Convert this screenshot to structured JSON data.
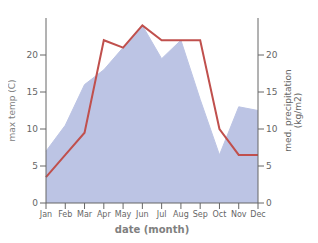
{
  "chart_data": {
    "type": "line",
    "categories": [
      "Jan",
      "Feb",
      "Mar",
      "Apr",
      "May",
      "Jun",
      "Jul",
      "Aug",
      "Sep",
      "Oct",
      "Nov",
      "Dec"
    ],
    "series": [
      {
        "type": "area",
        "axis": "y2",
        "color": "#bcc4e4",
        "values": [
          7.0,
          10.5,
          16.0,
          18.0,
          21.0,
          24.0,
          19.5,
          22.0,
          14.0,
          6.5,
          13.0,
          12.5
        ]
      },
      {
        "type": "line",
        "color": "#c0504d",
        "values": [
          3.5,
          6.5,
          9.5,
          22.0,
          21.0,
          24.0,
          22.0,
          22.0,
          22.0,
          10.0,
          6.5,
          6.5
        ]
      }
    ],
    "xlabel": "date (month)",
    "ylabel": "max temp (C)",
    "y2label": "med. precipitation\n(kg/m2)",
    "ylim": [
      0,
      25
    ],
    "yticks": [
      0,
      5,
      10,
      15,
      20
    ],
    "y2lim": [
      0,
      25
    ],
    "y2ticks": [
      0,
      5,
      10,
      15,
      20
    ],
    "grid": false
  }
}
